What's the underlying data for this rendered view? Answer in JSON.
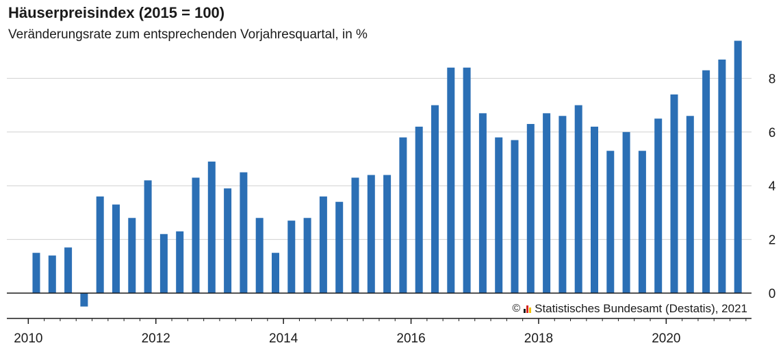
{
  "title": "Häuserpreisindex (2015 = 100)",
  "subtitle": "Veränderungsrate zum entsprechenden Vorjahresquartal, in %",
  "credit": {
    "copyright_symbol": "©",
    "text": "Statistisches Bundesamt (Destatis), 2021",
    "logo_colors": [
      "#1a1a1a",
      "#d6231e",
      "#f2c200"
    ]
  },
  "colors": {
    "bar": "#2b6fb5",
    "grid": "#d0d0d0",
    "axis": "#1a1a1a"
  },
  "chart_data": {
    "type": "bar",
    "title": "Häuserpreisindex (2015 = 100)",
    "subtitle": "Veränderungsrate zum entsprechenden Vorjahresquartal, in %",
    "xlabel": "",
    "ylabel": "",
    "ylim": [
      -0.7,
      9.6
    ],
    "y_ticks": [
      0,
      2,
      4,
      6,
      8
    ],
    "y_axis_side": "right",
    "grid": "horizontal",
    "x_tick_labels": [
      "2010",
      "2012",
      "2014",
      "2016",
      "2018",
      "2020"
    ],
    "categories": [
      "2010 Q1",
      "2010 Q2",
      "2010 Q3",
      "2010 Q4",
      "2011 Q1",
      "2011 Q2",
      "2011 Q3",
      "2011 Q4",
      "2012 Q1",
      "2012 Q2",
      "2012 Q3",
      "2012 Q4",
      "2013 Q1",
      "2013 Q2",
      "2013 Q3",
      "2013 Q4",
      "2014 Q1",
      "2014 Q2",
      "2014 Q3",
      "2014 Q4",
      "2015 Q1",
      "2015 Q2",
      "2015 Q3",
      "2015 Q4",
      "2016 Q1",
      "2016 Q2",
      "2016 Q3",
      "2016 Q4",
      "2017 Q1",
      "2017 Q2",
      "2017 Q3",
      "2017 Q4",
      "2018 Q1",
      "2018 Q2",
      "2018 Q3",
      "2018 Q4",
      "2019 Q1",
      "2019 Q2",
      "2019 Q3",
      "2019 Q4",
      "2020 Q1",
      "2020 Q2",
      "2020 Q3",
      "2020 Q4",
      "2021 Q1"
    ],
    "values": [
      1.5,
      1.4,
      1.7,
      -0.5,
      3.6,
      3.3,
      2.8,
      4.2,
      2.2,
      2.3,
      4.3,
      4.9,
      3.9,
      4.5,
      2.8,
      1.5,
      2.7,
      2.8,
      3.6,
      3.4,
      4.3,
      4.4,
      4.4,
      5.8,
      6.2,
      7.0,
      8.4,
      8.4,
      6.7,
      5.8,
      5.7,
      6.3,
      6.7,
      6.6,
      7.0,
      6.2,
      5.3,
      6.0,
      5.3,
      6.5,
      7.4,
      6.6,
      8.3,
      8.7,
      9.4
    ]
  }
}
